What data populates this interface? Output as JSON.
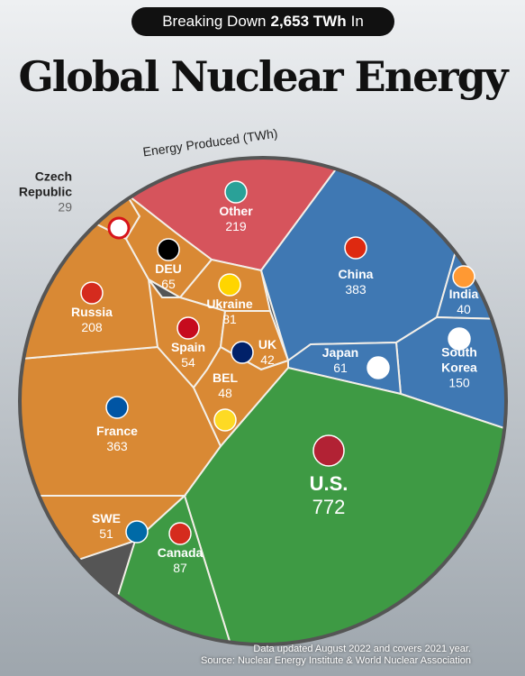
{
  "chart_data": {
    "type": "voronoi",
    "header_pre": "Breaking Down",
    "header_bold": "2,653 TWh",
    "header_post": "In",
    "title": "Global Nuclear Energy",
    "subtitle": "Energy Produced (TWh)",
    "categories": [
      "Other",
      "China",
      "India",
      "South Korea",
      "Japan",
      "U.S.",
      "Canada",
      "SWE",
      "France",
      "Russia",
      "Czech Republic",
      "DEU",
      "Ukraine",
      "Spain",
      "UK",
      "BEL"
    ],
    "values": [
      219,
      383,
      40,
      150,
      61,
      772,
      87,
      51,
      363,
      208,
      29,
      65,
      81,
      54,
      42,
      48
    ],
    "colors": [
      "#d6545c",
      "#3f78b3",
      "#3f78b3",
      "#3f78b3",
      "#3f78b3",
      "#3e9a44",
      "#3e9a44",
      "#d98934",
      "#d98934",
      "#d98934",
      "#d98934",
      "#d98934",
      "#d98934",
      "#d98934",
      "#d98934",
      "#d98934"
    ],
    "note": "Data updated August 2022 and covers 2021 year.",
    "source": "Source: Nuclear Energy Institute & World Nuclear Association"
  }
}
